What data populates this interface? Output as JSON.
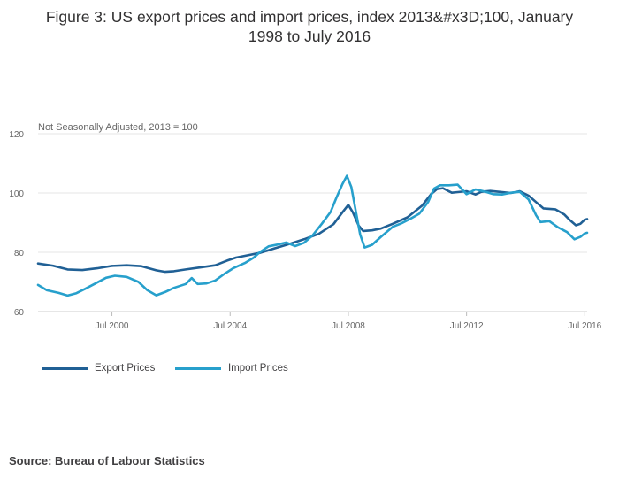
{
  "title": {
    "line1": "Figure 3: US export prices and import prices, index 2013&#x3D;100, January",
    "line2": "1998 to July 2016"
  },
  "source": "Source: Bureau of Labour Statistics",
  "colors": {
    "export": "#206095",
    "import": "#27a0cc",
    "grid": "#e6e6e6",
    "axis_text": "#666666",
    "title_text": "#323132"
  },
  "chart_data": {
    "type": "line",
    "title": "Figure 3: US export prices and import prices, index 2013&#x3D;100, January 1998 to July 2016",
    "subtitle": "Not Seasonally Adjusted, 2013 = 100",
    "xlabel": "",
    "ylabel": "Not Seasonally Adjusted, 2013 = 100",
    "xlim": [
      1998.0,
      2016.58
    ],
    "ylim": [
      60,
      120
    ],
    "yticks": [
      60,
      80,
      100,
      120
    ],
    "xticks": [
      {
        "value": 2000.5,
        "label": "Jul 2000"
      },
      {
        "value": 2004.5,
        "label": "Jul 2004"
      },
      {
        "value": 2008.5,
        "label": "Jul 2008"
      },
      {
        "value": 2012.5,
        "label": "Jul 2012"
      },
      {
        "value": 2016.5,
        "label": "Jul 2016"
      }
    ],
    "grid": true,
    "legend_position": "bottom-left",
    "series": [
      {
        "name": "Export Prices",
        "points": [
          [
            1998.0,
            76.2
          ],
          [
            1998.5,
            75.5
          ],
          [
            1999.0,
            74.2
          ],
          [
            1999.5,
            74.0
          ],
          [
            2000.0,
            74.6
          ],
          [
            2000.5,
            75.4
          ],
          [
            2001.0,
            75.6
          ],
          [
            2001.5,
            75.3
          ],
          [
            2002.0,
            73.9
          ],
          [
            2002.3,
            73.4
          ],
          [
            2002.6,
            73.6
          ],
          [
            2003.0,
            74.2
          ],
          [
            2003.5,
            74.9
          ],
          [
            2004.0,
            75.6
          ],
          [
            2004.4,
            77.2
          ],
          [
            2004.7,
            78.2
          ],
          [
            2005.0,
            78.8
          ],
          [
            2005.5,
            79.8
          ],
          [
            2006.0,
            81.3
          ],
          [
            2006.5,
            82.8
          ],
          [
            2007.0,
            84.4
          ],
          [
            2007.5,
            86.2
          ],
          [
            2008.0,
            89.5
          ],
          [
            2008.3,
            93.5
          ],
          [
            2008.5,
            96.0
          ],
          [
            2008.65,
            93.5
          ],
          [
            2008.85,
            89.0
          ],
          [
            2009.0,
            87.2
          ],
          [
            2009.3,
            87.4
          ],
          [
            2009.6,
            88.0
          ],
          [
            2010.0,
            89.6
          ],
          [
            2010.5,
            91.8
          ],
          [
            2011.0,
            95.8
          ],
          [
            2011.3,
            99.6
          ],
          [
            2011.5,
            101.3
          ],
          [
            2011.7,
            101.6
          ],
          [
            2012.0,
            100.1
          ],
          [
            2012.2,
            100.3
          ],
          [
            2012.5,
            100.6
          ],
          [
            2012.8,
            99.5
          ],
          [
            2013.0,
            100.4
          ],
          [
            2013.3,
            100.7
          ],
          [
            2013.6,
            100.4
          ],
          [
            2014.0,
            100.0
          ],
          [
            2014.3,
            100.6
          ],
          [
            2014.6,
            99.1
          ],
          [
            2014.9,
            96.5
          ],
          [
            2015.1,
            94.8
          ],
          [
            2015.5,
            94.5
          ],
          [
            2015.8,
            92.8
          ],
          [
            2016.0,
            90.8
          ],
          [
            2016.2,
            89.1
          ],
          [
            2016.35,
            89.6
          ],
          [
            2016.5,
            91.0
          ],
          [
            2016.58,
            91.2
          ]
        ]
      },
      {
        "name": "Import Prices",
        "points": [
          [
            1998.0,
            69.0
          ],
          [
            1998.3,
            67.2
          ],
          [
            1998.7,
            66.3
          ],
          [
            1999.0,
            65.4
          ],
          [
            1999.3,
            66.2
          ],
          [
            1999.6,
            67.7
          ],
          [
            2000.0,
            69.8
          ],
          [
            2000.3,
            71.4
          ],
          [
            2000.6,
            72.1
          ],
          [
            2001.0,
            71.7
          ],
          [
            2001.4,
            70.0
          ],
          [
            2001.7,
            67.2
          ],
          [
            2002.0,
            65.5
          ],
          [
            2002.3,
            66.6
          ],
          [
            2002.6,
            68.0
          ],
          [
            2003.0,
            69.3
          ],
          [
            2003.2,
            71.3
          ],
          [
            2003.4,
            69.3
          ],
          [
            2003.7,
            69.5
          ],
          [
            2004.0,
            70.5
          ],
          [
            2004.3,
            72.7
          ],
          [
            2004.6,
            74.6
          ],
          [
            2005.0,
            76.4
          ],
          [
            2005.3,
            78.2
          ],
          [
            2005.5,
            80.0
          ],
          [
            2005.8,
            82.0
          ],
          [
            2006.1,
            82.6
          ],
          [
            2006.4,
            83.3
          ],
          [
            2006.7,
            82.1
          ],
          [
            2007.0,
            83.2
          ],
          [
            2007.3,
            85.8
          ],
          [
            2007.6,
            89.6
          ],
          [
            2007.9,
            93.6
          ],
          [
            2008.1,
            98.5
          ],
          [
            2008.3,
            103.0
          ],
          [
            2008.45,
            105.8
          ],
          [
            2008.6,
            102.0
          ],
          [
            2008.75,
            94.0
          ],
          [
            2008.9,
            86.0
          ],
          [
            2009.05,
            81.6
          ],
          [
            2009.3,
            82.5
          ],
          [
            2009.6,
            85.2
          ],
          [
            2010.0,
            88.6
          ],
          [
            2010.3,
            89.8
          ],
          [
            2010.6,
            91.3
          ],
          [
            2010.9,
            93.0
          ],
          [
            2011.2,
            97.0
          ],
          [
            2011.4,
            101.5
          ],
          [
            2011.6,
            102.6
          ],
          [
            2011.9,
            102.6
          ],
          [
            2012.2,
            102.8
          ],
          [
            2012.5,
            99.6
          ],
          [
            2012.8,
            101.2
          ],
          [
            2013.1,
            100.5
          ],
          [
            2013.4,
            99.6
          ],
          [
            2013.7,
            99.5
          ],
          [
            2014.0,
            100.1
          ],
          [
            2014.3,
            100.4
          ],
          [
            2014.6,
            97.8
          ],
          [
            2014.85,
            92.5
          ],
          [
            2015.0,
            90.2
          ],
          [
            2015.3,
            90.5
          ],
          [
            2015.6,
            88.4
          ],
          [
            2015.9,
            86.8
          ],
          [
            2016.15,
            84.4
          ],
          [
            2016.35,
            85.2
          ],
          [
            2016.5,
            86.4
          ],
          [
            2016.58,
            86.6
          ]
        ]
      }
    ]
  }
}
